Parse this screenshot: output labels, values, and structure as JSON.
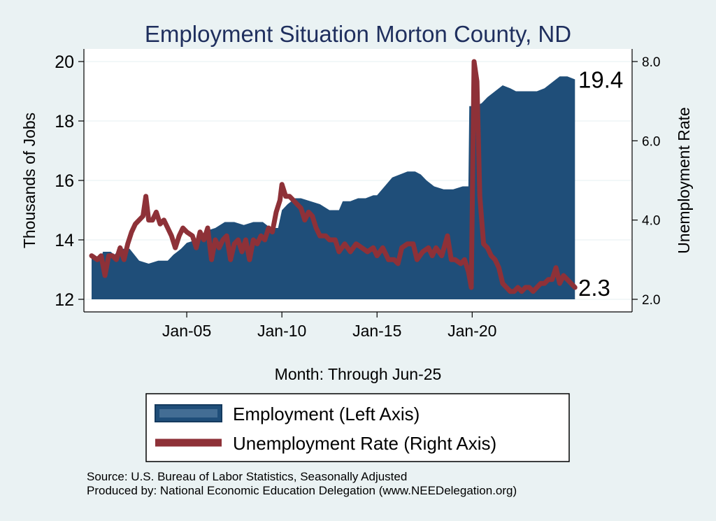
{
  "chart_data": {
    "type": "area+line",
    "title": "Employment Situation Morton  County, ND",
    "xlabel": "Month: Through Jun-25",
    "ylabel_left": "Thousands of Jobs",
    "ylabel_right": "Unemployment Rate",
    "ylim_left": [
      12,
      20
    ],
    "ylim_right": [
      2,
      8
    ],
    "x_range": [
      2000.0,
      2025.5
    ],
    "x_ticks": [
      {
        "x": 2005.0,
        "label": "Jan-05"
      },
      {
        "x": 2010.0,
        "label": "Jan-10"
      },
      {
        "x": 2015.0,
        "label": "Jan-15"
      },
      {
        "x": 2020.0,
        "label": "Jan-20"
      }
    ],
    "y_ticks_left": [
      {
        "v": 12,
        "label": "12"
      },
      {
        "v": 14,
        "label": "14"
      },
      {
        "v": 16,
        "label": "16"
      },
      {
        "v": 18,
        "label": "18"
      },
      {
        "v": 20,
        "label": "20"
      }
    ],
    "y_ticks_right": [
      {
        "v": 2,
        "label": "2.0"
      },
      {
        "v": 4,
        "label": "4.0"
      },
      {
        "v": 6,
        "label": "6.0"
      },
      {
        "v": 8,
        "label": "8.0"
      }
    ],
    "series": [
      {
        "name": "Employment (Left Axis)",
        "axis": "left",
        "kind": "area",
        "color": "#1f4e79",
        "points": [
          [
            2000.0,
            13.4
          ],
          [
            2000.5,
            13.4
          ],
          [
            2000.6,
            13.6
          ],
          [
            2001.0,
            13.6
          ],
          [
            2001.2,
            13.5
          ],
          [
            2001.5,
            13.7
          ],
          [
            2002.0,
            13.7
          ],
          [
            2002.5,
            13.3
          ],
          [
            2003.0,
            13.2
          ],
          [
            2003.5,
            13.3
          ],
          [
            2004.0,
            13.3
          ],
          [
            2004.3,
            13.5
          ],
          [
            2004.7,
            13.7
          ],
          [
            2005.0,
            13.9
          ],
          [
            2005.5,
            14.0
          ],
          [
            2006.0,
            14.3
          ],
          [
            2006.5,
            14.4
          ],
          [
            2007.0,
            14.6
          ],
          [
            2007.5,
            14.6
          ],
          [
            2008.0,
            14.5
          ],
          [
            2008.5,
            14.6
          ],
          [
            2009.0,
            14.6
          ],
          [
            2009.4,
            14.4
          ],
          [
            2009.8,
            14.4
          ],
          [
            2010.0,
            15.0
          ],
          [
            2010.3,
            15.2
          ],
          [
            2010.7,
            15.4
          ],
          [
            2011.0,
            15.4
          ],
          [
            2011.5,
            15.3
          ],
          [
            2012.0,
            15.2
          ],
          [
            2012.5,
            15.0
          ],
          [
            2013.0,
            15.0
          ],
          [
            2013.2,
            15.3
          ],
          [
            2013.6,
            15.3
          ],
          [
            2014.0,
            15.4
          ],
          [
            2014.4,
            15.4
          ],
          [
            2014.8,
            15.5
          ],
          [
            2015.0,
            15.5
          ],
          [
            2015.4,
            15.8
          ],
          [
            2015.8,
            16.1
          ],
          [
            2016.2,
            16.2
          ],
          [
            2016.6,
            16.3
          ],
          [
            2017.0,
            16.3
          ],
          [
            2017.3,
            16.2
          ],
          [
            2017.6,
            16.0
          ],
          [
            2018.0,
            15.8
          ],
          [
            2018.5,
            15.7
          ],
          [
            2019.0,
            15.7
          ],
          [
            2019.5,
            15.8
          ],
          [
            2019.8,
            15.8
          ],
          [
            2019.85,
            18.5
          ],
          [
            2020.2,
            18.5
          ],
          [
            2020.5,
            18.6
          ],
          [
            2020.8,
            18.8
          ],
          [
            2021.2,
            19.0
          ],
          [
            2021.6,
            19.2
          ],
          [
            2022.0,
            19.1
          ],
          [
            2022.3,
            19.0
          ],
          [
            2022.7,
            19.0
          ],
          [
            2023.0,
            19.0
          ],
          [
            2023.4,
            19.0
          ],
          [
            2023.8,
            19.1
          ],
          [
            2024.2,
            19.3
          ],
          [
            2024.6,
            19.5
          ],
          [
            2025.0,
            19.5
          ],
          [
            2025.4,
            19.4
          ]
        ]
      },
      {
        "name": "Unemployment Rate (Right Axis)",
        "axis": "right",
        "kind": "line",
        "color": "#8e3138",
        "points": [
          [
            2000.0,
            3.1
          ],
          [
            2000.3,
            3.0
          ],
          [
            2000.5,
            3.1
          ],
          [
            2000.7,
            2.6
          ],
          [
            2000.9,
            3.1
          ],
          [
            2001.1,
            3.1
          ],
          [
            2001.3,
            3.0
          ],
          [
            2001.5,
            3.3
          ],
          [
            2001.7,
            3.0
          ],
          [
            2001.9,
            3.4
          ],
          [
            2002.1,
            3.7
          ],
          [
            2002.3,
            3.9
          ],
          [
            2002.5,
            4.0
          ],
          [
            2002.7,
            4.1
          ],
          [
            2002.85,
            4.6
          ],
          [
            2003.0,
            4.0
          ],
          [
            2003.2,
            4.0
          ],
          [
            2003.4,
            4.2
          ],
          [
            2003.6,
            3.9
          ],
          [
            2003.8,
            4.0
          ],
          [
            2004.0,
            3.8
          ],
          [
            2004.2,
            3.6
          ],
          [
            2004.4,
            3.3
          ],
          [
            2004.6,
            3.6
          ],
          [
            2004.8,
            3.8
          ],
          [
            2005.0,
            3.7
          ],
          [
            2005.3,
            3.6
          ],
          [
            2005.5,
            3.3
          ],
          [
            2005.7,
            3.7
          ],
          [
            2005.9,
            3.5
          ],
          [
            2006.1,
            3.8
          ],
          [
            2006.3,
            3.0
          ],
          [
            2006.5,
            3.5
          ],
          [
            2006.7,
            3.3
          ],
          [
            2006.9,
            3.5
          ],
          [
            2007.1,
            3.6
          ],
          [
            2007.3,
            3.0
          ],
          [
            2007.5,
            3.4
          ],
          [
            2007.7,
            3.5
          ],
          [
            2007.9,
            3.2
          ],
          [
            2008.1,
            3.5
          ],
          [
            2008.3,
            3.0
          ],
          [
            2008.5,
            3.5
          ],
          [
            2008.7,
            3.4
          ],
          [
            2008.9,
            3.6
          ],
          [
            2009.1,
            3.5
          ],
          [
            2009.3,
            3.8
          ],
          [
            2009.5,
            3.7
          ],
          [
            2009.7,
            4.2
          ],
          [
            2009.9,
            4.5
          ],
          [
            2010.0,
            4.9
          ],
          [
            2010.2,
            4.6
          ],
          [
            2010.4,
            4.6
          ],
          [
            2010.6,
            4.5
          ],
          [
            2010.8,
            4.4
          ],
          [
            2011.0,
            4.3
          ],
          [
            2011.2,
            4.0
          ],
          [
            2011.4,
            4.2
          ],
          [
            2011.6,
            4.1
          ],
          [
            2011.8,
            3.8
          ],
          [
            2012.0,
            3.6
          ],
          [
            2012.3,
            3.6
          ],
          [
            2012.5,
            3.5
          ],
          [
            2012.8,
            3.5
          ],
          [
            2013.0,
            3.2
          ],
          [
            2013.3,
            3.4
          ],
          [
            2013.6,
            3.2
          ],
          [
            2013.9,
            3.4
          ],
          [
            2014.2,
            3.3
          ],
          [
            2014.5,
            3.2
          ],
          [
            2014.8,
            3.3
          ],
          [
            2015.0,
            3.1
          ],
          [
            2015.3,
            3.3
          ],
          [
            2015.6,
            3.0
          ],
          [
            2015.9,
            3.0
          ],
          [
            2016.1,
            2.9
          ],
          [
            2016.3,
            3.3
          ],
          [
            2016.6,
            3.4
          ],
          [
            2016.9,
            3.4
          ],
          [
            2017.1,
            3.0
          ],
          [
            2017.4,
            3.2
          ],
          [
            2017.7,
            3.3
          ],
          [
            2017.9,
            3.1
          ],
          [
            2018.1,
            3.3
          ],
          [
            2018.4,
            3.1
          ],
          [
            2018.7,
            3.6
          ],
          [
            2018.9,
            3.0
          ],
          [
            2019.1,
            3.0
          ],
          [
            2019.4,
            2.9
          ],
          [
            2019.6,
            3.0
          ],
          [
            2019.8,
            2.7
          ],
          [
            2019.95,
            2.3
          ],
          [
            2020.1,
            8.0
          ],
          [
            2020.25,
            7.5
          ],
          [
            2020.4,
            4.6
          ],
          [
            2020.6,
            3.4
          ],
          [
            2020.8,
            3.3
          ],
          [
            2021.0,
            3.1
          ],
          [
            2021.2,
            3.0
          ],
          [
            2021.4,
            2.8
          ],
          [
            2021.6,
            2.4
          ],
          [
            2021.8,
            2.3
          ],
          [
            2022.0,
            2.2
          ],
          [
            2022.2,
            2.2
          ],
          [
            2022.4,
            2.3
          ],
          [
            2022.6,
            2.2
          ],
          [
            2022.8,
            2.3
          ],
          [
            2023.0,
            2.3
          ],
          [
            2023.2,
            2.2
          ],
          [
            2023.4,
            2.3
          ],
          [
            2023.6,
            2.4
          ],
          [
            2023.8,
            2.4
          ],
          [
            2024.0,
            2.5
          ],
          [
            2024.2,
            2.5
          ],
          [
            2024.4,
            2.8
          ],
          [
            2024.6,
            2.4
          ],
          [
            2024.8,
            2.6
          ],
          [
            2025.0,
            2.5
          ],
          [
            2025.2,
            2.4
          ],
          [
            2025.4,
            2.3
          ]
        ]
      }
    ],
    "annotations": [
      {
        "text": "19.4",
        "axis": "left",
        "value": 19.4
      },
      {
        "text": "2.3",
        "axis": "right",
        "value": 2.3
      }
    ],
    "legend": {
      "position": "bottom",
      "items": [
        {
          "label": "Employment (Left Axis)",
          "kind": "area",
          "color": "#1f4e79"
        },
        {
          "label": "Unemployment Rate (Right Axis)",
          "kind": "line",
          "color": "#8e3138"
        }
      ]
    }
  },
  "source_lines": {
    "line1": "Source: U.S. Bureau of Labor Statistics, Seasonally Adjusted",
    "line2": "Produced by: National Economic Education Delegation (www.NEEDelegation.org)"
  },
  "colors": {
    "background": "#eaf2f3",
    "plot_background": "#ffffff",
    "title": "#1f2f5e"
  }
}
